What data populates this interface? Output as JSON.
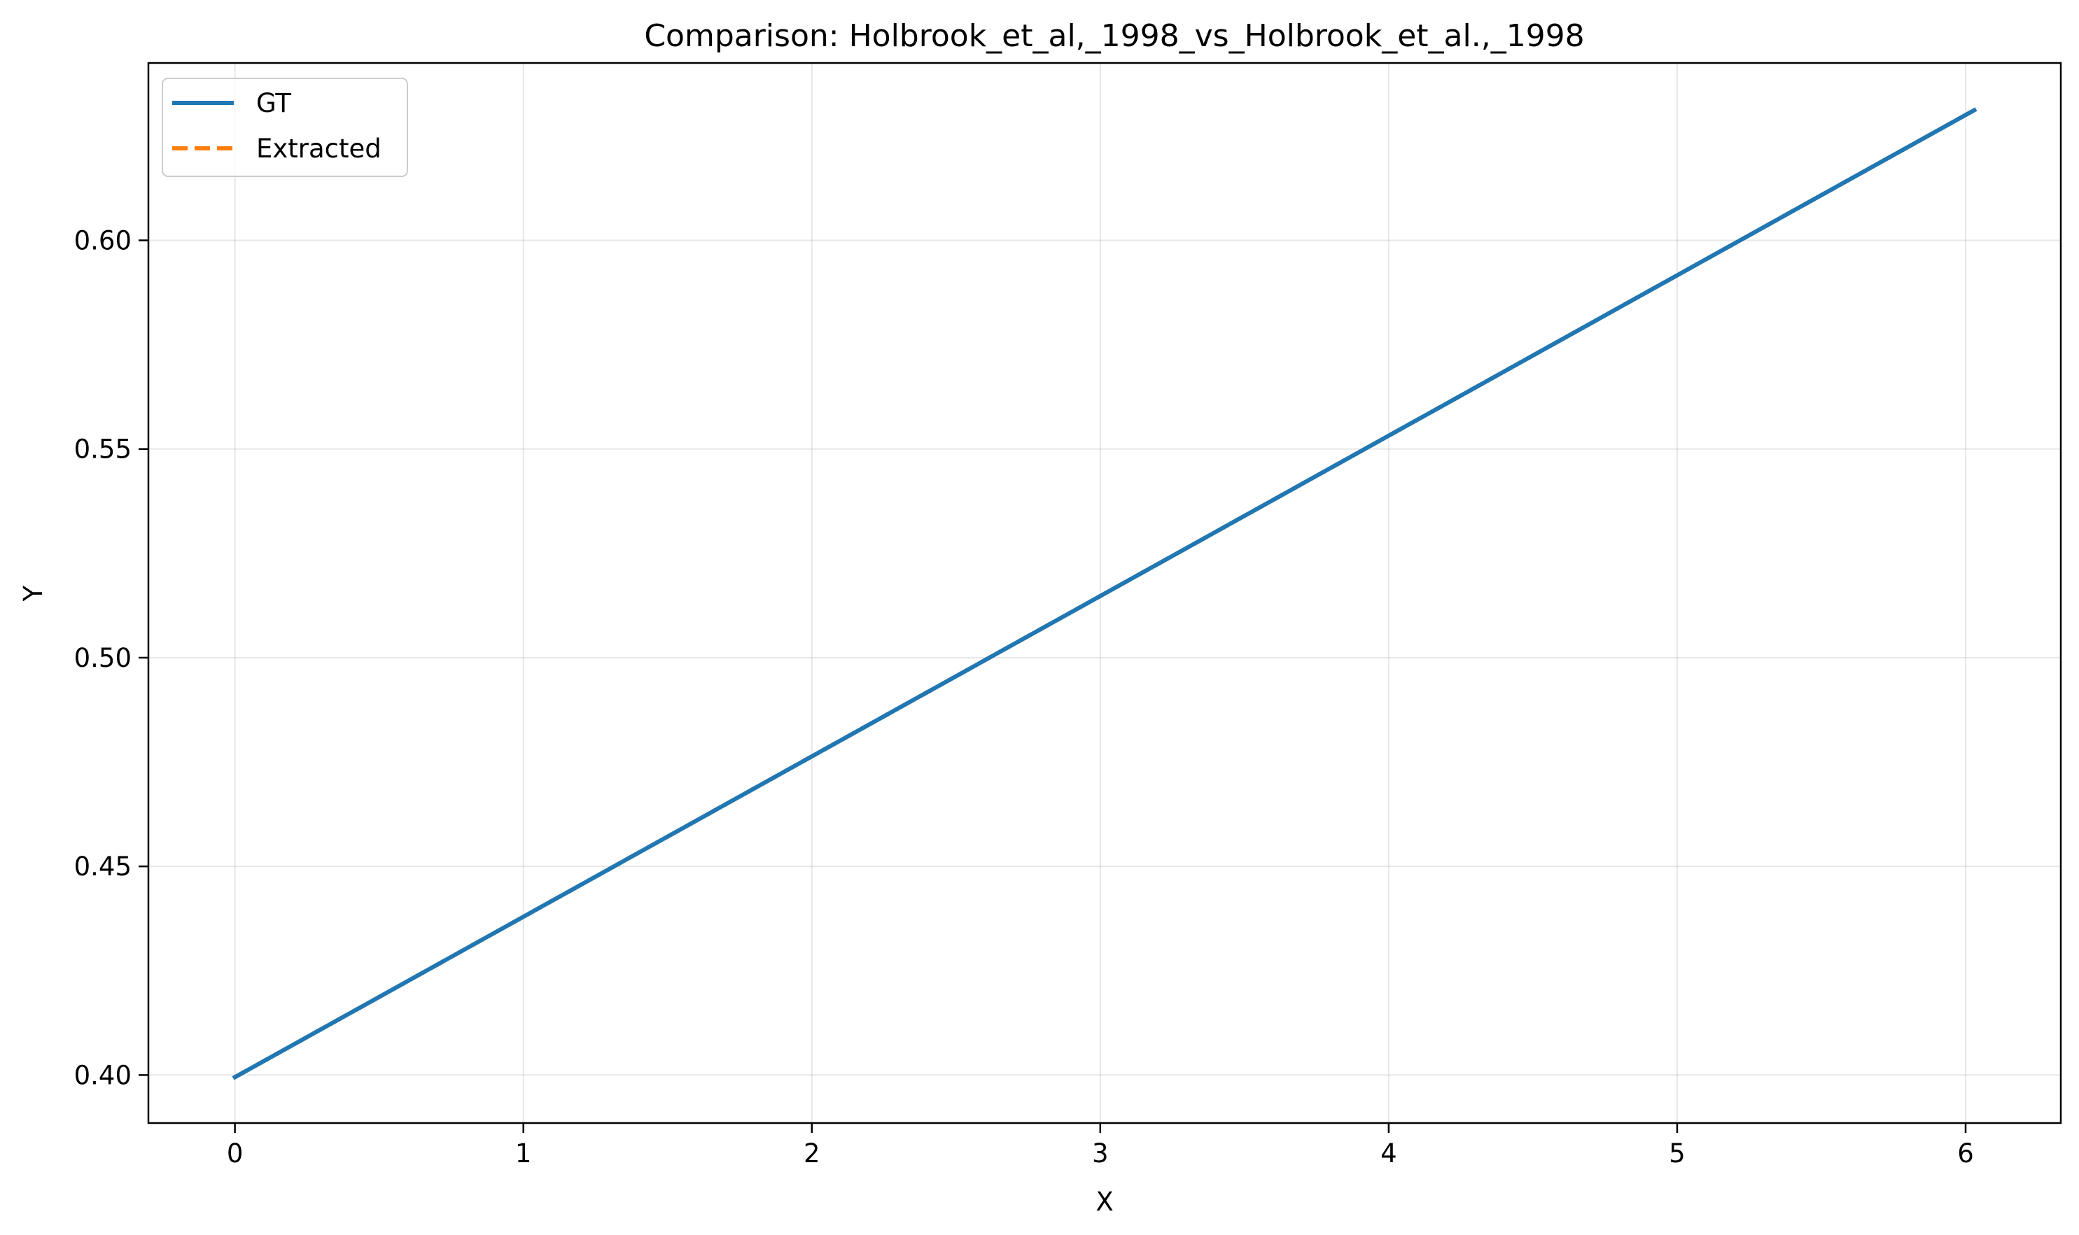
{
  "chart_data": {
    "type": "line",
    "title": "Comparison: Holbrook_et_al,_1998_vs_Holbrook_et_al.,_1998",
    "xlabel": "X",
    "ylabel": "Y",
    "xlim": [
      -0.3,
      6.33
    ],
    "ylim": [
      0.3885,
      0.6425
    ],
    "xticks": [
      0,
      1,
      2,
      3,
      4,
      5,
      6
    ],
    "xtick_labels": [
      "0",
      "1",
      "2",
      "3",
      "4",
      "5",
      "6"
    ],
    "yticks": [
      0.4,
      0.45,
      0.5,
      0.55,
      0.6
    ],
    "ytick_labels": [
      "0.40",
      "0.45",
      "0.50",
      "0.55",
      "0.60"
    ],
    "grid": true,
    "legend_position": "top-left",
    "series": [
      {
        "name": "GT",
        "color": "#1f77b4",
        "style": "solid",
        "x": [
          0.0,
          6.03
        ],
        "y": [
          0.3995,
          0.6312
        ]
      },
      {
        "name": "Extracted",
        "color": "#ff7f0e",
        "style": "dashed",
        "x": [
          0.0,
          6.03
        ],
        "y": [
          0.3995,
          0.6312
        ]
      }
    ]
  }
}
